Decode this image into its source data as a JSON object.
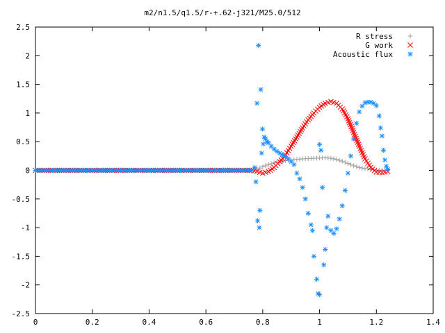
{
  "chart_data": {
    "type": "scatter",
    "title": "m2/n1.5/q1.5/r-+.62-j321/M25.0/512",
    "xlabel": "",
    "ylabel": "",
    "xlim": [
      0,
      1.4
    ],
    "ylim": [
      -2.5,
      2.5
    ],
    "x_ticks": [
      "0",
      "0.2",
      "0.4",
      "0.6",
      "0.8",
      "1",
      "1.2",
      "1.4"
    ],
    "y_ticks": [
      "2.5",
      "2",
      "1.5",
      "1",
      "0.5",
      "0",
      "-0.5",
      "-1",
      "-1.5",
      "-2",
      "-2.5"
    ],
    "grid": false,
    "legend_position": "top-right",
    "series": [
      {
        "name": "R stress",
        "marker": "+",
        "color": "#a0a0a0",
        "points": [
          [
            0,
            0
          ],
          [
            0.1,
            0
          ],
          [
            0.2,
            0
          ],
          [
            0.3,
            0
          ],
          [
            0.4,
            0
          ],
          [
            0.5,
            0
          ],
          [
            0.6,
            0
          ],
          [
            0.7,
            0
          ],
          [
            0.76,
            0
          ],
          [
            0.78,
            0.02
          ],
          [
            0.8,
            0.06
          ],
          [
            0.82,
            0.1
          ],
          [
            0.84,
            0.13
          ],
          [
            0.86,
            0.15
          ],
          [
            0.88,
            0.17
          ],
          [
            0.9,
            0.18
          ],
          [
            0.92,
            0.19
          ],
          [
            0.94,
            0.2
          ],
          [
            0.96,
            0.205
          ],
          [
            0.98,
            0.21
          ],
          [
            1.0,
            0.215
          ],
          [
            1.02,
            0.22
          ],
          [
            1.04,
            0.21
          ],
          [
            1.06,
            0.19
          ],
          [
            1.08,
            0.16
          ],
          [
            1.1,
            0.12
          ],
          [
            1.12,
            0.08
          ],
          [
            1.14,
            0.05
          ],
          [
            1.16,
            0.03
          ],
          [
            1.18,
            0.015
          ],
          [
            1.2,
            0.005
          ],
          [
            1.22,
            0
          ],
          [
            1.24,
            0
          ]
        ]
      },
      {
        "name": "G work",
        "marker": "x",
        "color": "#ff0000",
        "points": [
          [
            0,
            0
          ],
          [
            0.1,
            0
          ],
          [
            0.2,
            0
          ],
          [
            0.3,
            0
          ],
          [
            0.4,
            0
          ],
          [
            0.5,
            0
          ],
          [
            0.6,
            0
          ],
          [
            0.7,
            0
          ],
          [
            0.76,
            0
          ],
          [
            0.78,
            -0.02
          ],
          [
            0.8,
            -0.05
          ],
          [
            0.82,
            -0.02
          ],
          [
            0.84,
            0.05
          ],
          [
            0.86,
            0.15
          ],
          [
            0.88,
            0.27
          ],
          [
            0.9,
            0.42
          ],
          [
            0.92,
            0.58
          ],
          [
            0.94,
            0.74
          ],
          [
            0.96,
            0.88
          ],
          [
            0.98,
            1.0
          ],
          [
            1.0,
            1.1
          ],
          [
            1.02,
            1.17
          ],
          [
            1.04,
            1.2
          ],
          [
            1.06,
            1.17
          ],
          [
            1.08,
            1.07
          ],
          [
            1.1,
            0.9
          ],
          [
            1.12,
            0.66
          ],
          [
            1.14,
            0.42
          ],
          [
            1.16,
            0.2
          ],
          [
            1.18,
            0.05
          ],
          [
            1.2,
            -0.03
          ],
          [
            1.22,
            -0.04
          ],
          [
            1.24,
            -0.02
          ]
        ]
      },
      {
        "name": "Acoustic flux",
        "marker": "*",
        "color": "#1e90ff",
        "points": [
          [
            0,
            0
          ],
          [
            0.02,
            0
          ],
          [
            0.04,
            0
          ],
          [
            0.06,
            0
          ],
          [
            0.08,
            0
          ],
          [
            0.1,
            0
          ],
          [
            0.12,
            0
          ],
          [
            0.14,
            0
          ],
          [
            0.16,
            0
          ],
          [
            0.18,
            0
          ],
          [
            0.2,
            0
          ],
          [
            0.22,
            0
          ],
          [
            0.24,
            0
          ],
          [
            0.26,
            0
          ],
          [
            0.28,
            0
          ],
          [
            0.3,
            0
          ],
          [
            0.32,
            0
          ],
          [
            0.34,
            0
          ],
          [
            0.36,
            0
          ],
          [
            0.38,
            0
          ],
          [
            0.4,
            0
          ],
          [
            0.42,
            0
          ],
          [
            0.44,
            0
          ],
          [
            0.46,
            0
          ],
          [
            0.48,
            0
          ],
          [
            0.5,
            0
          ],
          [
            0.52,
            0
          ],
          [
            0.54,
            0
          ],
          [
            0.56,
            0
          ],
          [
            0.58,
            0
          ],
          [
            0.6,
            0
          ],
          [
            0.62,
            0
          ],
          [
            0.64,
            0
          ],
          [
            0.66,
            0
          ],
          [
            0.68,
            0
          ],
          [
            0.7,
            0
          ],
          [
            0.72,
            0
          ],
          [
            0.74,
            0
          ],
          [
            0.76,
            0
          ],
          [
            0.772,
            0.05
          ],
          [
            0.776,
            -0.2
          ],
          [
            0.78,
            1.17
          ],
          [
            0.782,
            -0.88
          ],
          [
            0.785,
            2.18
          ],
          [
            0.788,
            -1.0
          ],
          [
            0.79,
            -0.7
          ],
          [
            0.793,
            1.41
          ],
          [
            0.796,
            0.3
          ],
          [
            0.799,
            0.72
          ],
          [
            0.802,
            0.46
          ],
          [
            0.805,
            0.58
          ],
          [
            0.81,
            0.55
          ],
          [
            0.815,
            0.5
          ],
          [
            0.82,
            0.48
          ],
          [
            0.83,
            0.42
          ],
          [
            0.84,
            0.37
          ],
          [
            0.85,
            0.33
          ],
          [
            0.86,
            0.3
          ],
          [
            0.87,
            0.27
          ],
          [
            0.88,
            0.24
          ],
          [
            0.89,
            0.2
          ],
          [
            0.9,
            0.15
          ],
          [
            0.91,
            0.1
          ],
          [
            0.92,
            -0.05
          ],
          [
            0.93,
            -0.15
          ],
          [
            0.94,
            -0.3
          ],
          [
            0.95,
            -0.5
          ],
          [
            0.96,
            -0.75
          ],
          [
            0.97,
            -0.95
          ],
          [
            0.975,
            -1.05
          ],
          [
            0.98,
            -1.5
          ],
          [
            0.99,
            -1.9
          ],
          [
            0.995,
            -2.15
          ],
          [
            1.0,
            -2.17
          ],
          [
            1.0,
            0.45
          ],
          [
            1.005,
            0.35
          ],
          [
            1.01,
            -0.3
          ],
          [
            1.015,
            -1.65
          ],
          [
            1.02,
            -1.38
          ],
          [
            1.025,
            -1.0
          ],
          [
            1.03,
            -0.8
          ],
          [
            1.04,
            -1.05
          ],
          [
            1.05,
            -1.1
          ],
          [
            1.06,
            -1.02
          ],
          [
            1.07,
            -0.85
          ],
          [
            1.08,
            -0.62
          ],
          [
            1.09,
            -0.35
          ],
          [
            1.1,
            -0.05
          ],
          [
            1.11,
            0.25
          ],
          [
            1.12,
            0.55
          ],
          [
            1.13,
            0.82
          ],
          [
            1.14,
            1.02
          ],
          [
            1.15,
            1.12
          ],
          [
            1.16,
            1.18
          ],
          [
            1.17,
            1.19
          ],
          [
            1.18,
            1.19
          ],
          [
            1.19,
            1.17
          ],
          [
            1.2,
            1.13
          ],
          [
            1.21,
            0.95
          ],
          [
            1.215,
            0.74
          ],
          [
            1.22,
            0.6
          ],
          [
            1.225,
            0.35
          ],
          [
            1.23,
            0.18
          ],
          [
            1.235,
            0.07
          ],
          [
            1.24,
            0.02
          ]
        ]
      }
    ]
  }
}
